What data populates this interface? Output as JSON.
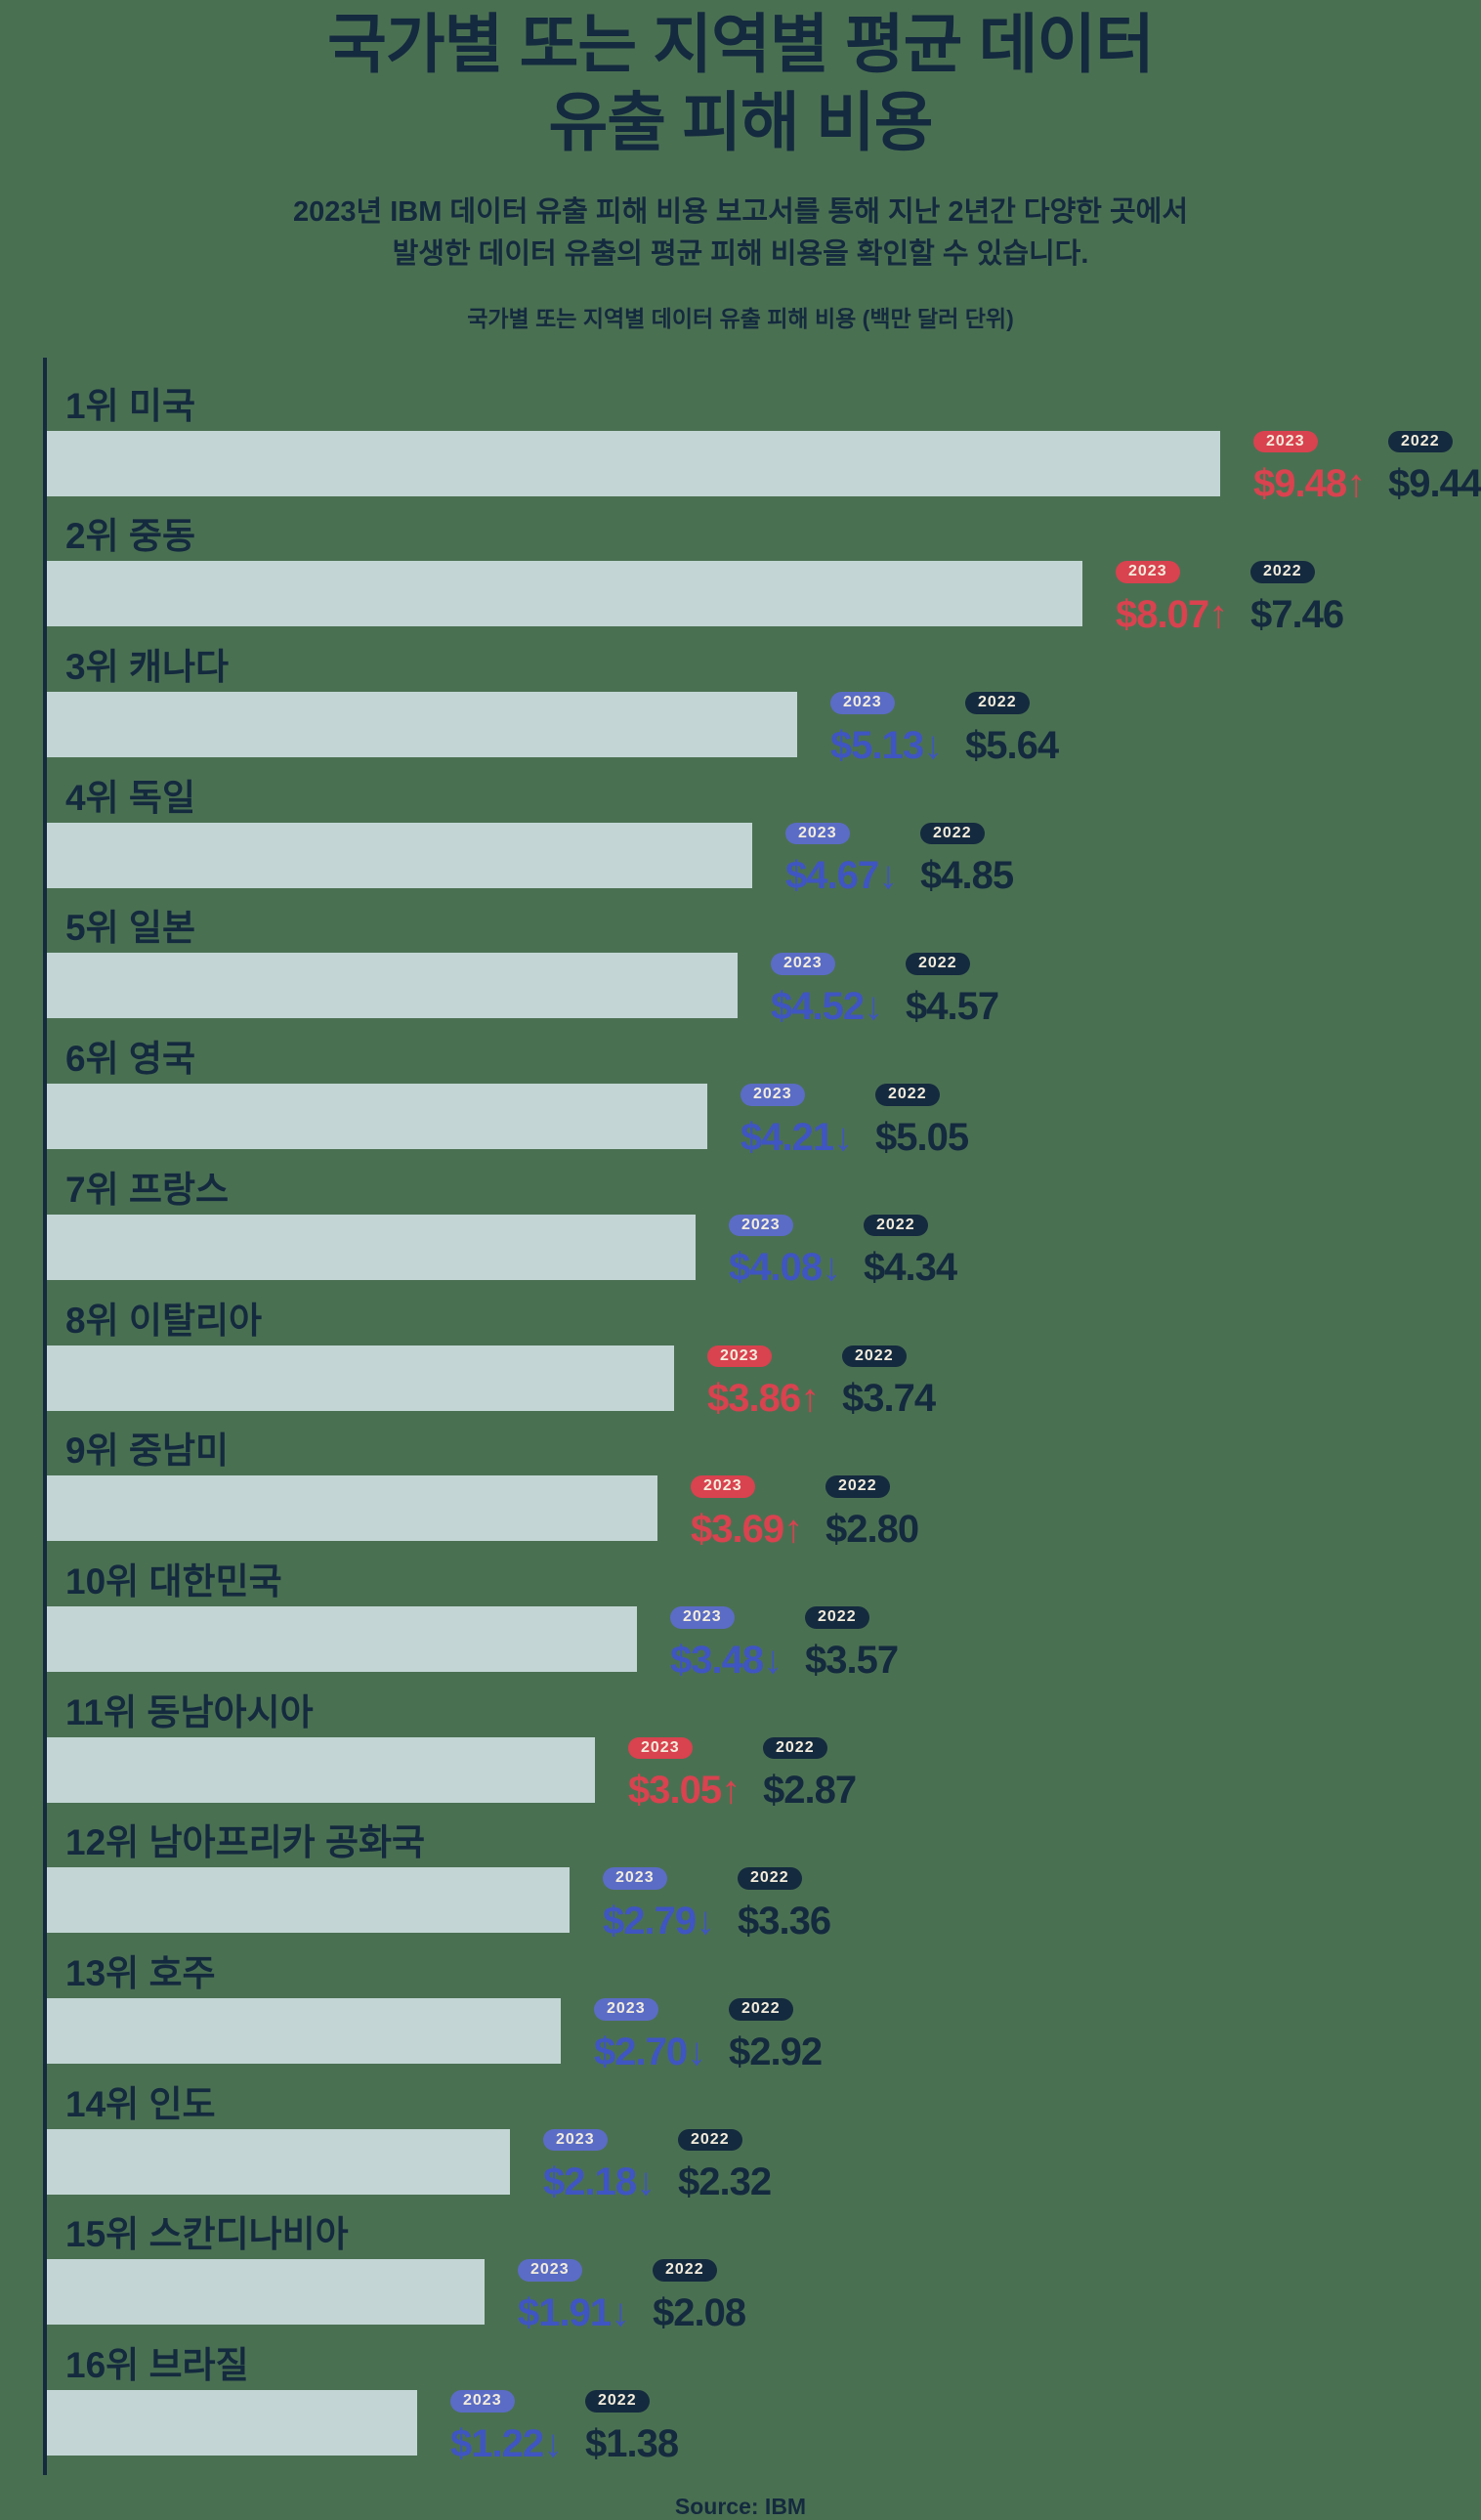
{
  "header": {
    "title_lines": [
      "국가별 또는 지역별 평균 데이터",
      "유출 피해 비용"
    ],
    "subtitle_lines": [
      "2023년 IBM 데이터 유출 피해 비용 보고서를 통해 지난 2년간 다양한 곳에서",
      "발생한 데이터 유출의 평균 피해 비용을 확인할 수 있습니다."
    ],
    "caption": "국가별 또는 지역별 데이터 유출 피해 비용 (백만 달러 단위)"
  },
  "footer": {
    "source": "Source: IBM"
  },
  "colors": {
    "background": "#4a7052",
    "navy": "#142a3e",
    "bar_fill": "#c3d6d5",
    "increase_red": "#d9424f",
    "decrease_blue_badge": "#5a6cc5",
    "decrease_blue_text": "#3f55c1",
    "badge_text": "#f3ecdc"
  },
  "chart_data": {
    "type": "bar",
    "orientation": "horizontal",
    "title": "국가별 또는 지역별 데이터 유출 피해 비용 (백만 달러 단위)",
    "unit": "백만 달러 (USD millions)",
    "years": [
      "2023",
      "2022"
    ],
    "value_domain": [
      1.22,
      9.48
    ],
    "legend": {
      "up_arrow": "↑",
      "down_arrow": "↓",
      "up_meaning": "increase vs 2022",
      "down_meaning": "decrease vs 2022"
    },
    "rows": [
      {
        "rank": "1위",
        "region": "미국",
        "value_2023": 9.48,
        "display_2023": "$9.48",
        "trend": "up",
        "value_2022": 9.44,
        "display_2022": "$9.44"
      },
      {
        "rank": "2위",
        "region": "중동",
        "value_2023": 8.07,
        "display_2023": "$8.07",
        "trend": "up",
        "value_2022": 7.46,
        "display_2022": "$7.46"
      },
      {
        "rank": "3위",
        "region": "캐나다",
        "value_2023": 5.13,
        "display_2023": "$5.13",
        "trend": "down",
        "value_2022": 5.64,
        "display_2022": "$5.64"
      },
      {
        "rank": "4위",
        "region": "독일",
        "value_2023": 4.67,
        "display_2023": "$4.67",
        "trend": "down",
        "value_2022": 4.85,
        "display_2022": "$4.85"
      },
      {
        "rank": "5위",
        "region": "일본",
        "value_2023": 4.52,
        "display_2023": "$4.52",
        "trend": "down",
        "value_2022": 4.57,
        "display_2022": "$4.57"
      },
      {
        "rank": "6위",
        "region": "영국",
        "value_2023": 4.21,
        "display_2023": "$4.21",
        "trend": "down",
        "value_2022": 5.05,
        "display_2022": "$5.05"
      },
      {
        "rank": "7위",
        "region": "프랑스",
        "value_2023": 4.08,
        "display_2023": "$4.08",
        "trend": "down",
        "value_2022": 4.34,
        "display_2022": "$4.34"
      },
      {
        "rank": "8위",
        "region": "이탈리아",
        "value_2023": 3.86,
        "display_2023": "$3.86",
        "trend": "up",
        "value_2022": 3.74,
        "display_2022": "$3.74"
      },
      {
        "rank": "9위",
        "region": "중남미",
        "value_2023": 3.69,
        "display_2023": "$3.69",
        "trend": "up",
        "value_2022": 2.8,
        "display_2022": "$2.80"
      },
      {
        "rank": "10위",
        "region": "대한민국",
        "value_2023": 3.48,
        "display_2023": "$3.48",
        "trend": "down",
        "value_2022": 3.57,
        "display_2022": "$3.57"
      },
      {
        "rank": "11위",
        "region": "동남아시아",
        "value_2023": 3.05,
        "display_2023": "$3.05",
        "trend": "up",
        "value_2022": 2.87,
        "display_2022": "$2.87"
      },
      {
        "rank": "12위",
        "region": "남아프리카 공화국",
        "value_2023": 2.79,
        "display_2023": "$2.79",
        "trend": "down",
        "value_2022": 3.36,
        "display_2022": "$3.36"
      },
      {
        "rank": "13위",
        "region": "호주",
        "value_2023": 2.7,
        "display_2023": "$2.70",
        "trend": "down",
        "value_2022": 2.92,
        "display_2022": "$2.92"
      },
      {
        "rank": "14위",
        "region": "인도",
        "value_2023": 2.18,
        "display_2023": "$2.18",
        "trend": "down",
        "value_2022": 2.32,
        "display_2022": "$2.32"
      },
      {
        "rank": "15위",
        "region": "스칸디나비아",
        "value_2023": 1.91,
        "display_2023": "$1.91",
        "trend": "down",
        "value_2022": 2.08,
        "display_2022": "$2.08"
      },
      {
        "rank": "16위",
        "region": "브라질",
        "value_2023": 1.22,
        "display_2023": "$1.22",
        "trend": "down",
        "value_2022": 1.38,
        "display_2022": "$1.38"
      }
    ]
  }
}
